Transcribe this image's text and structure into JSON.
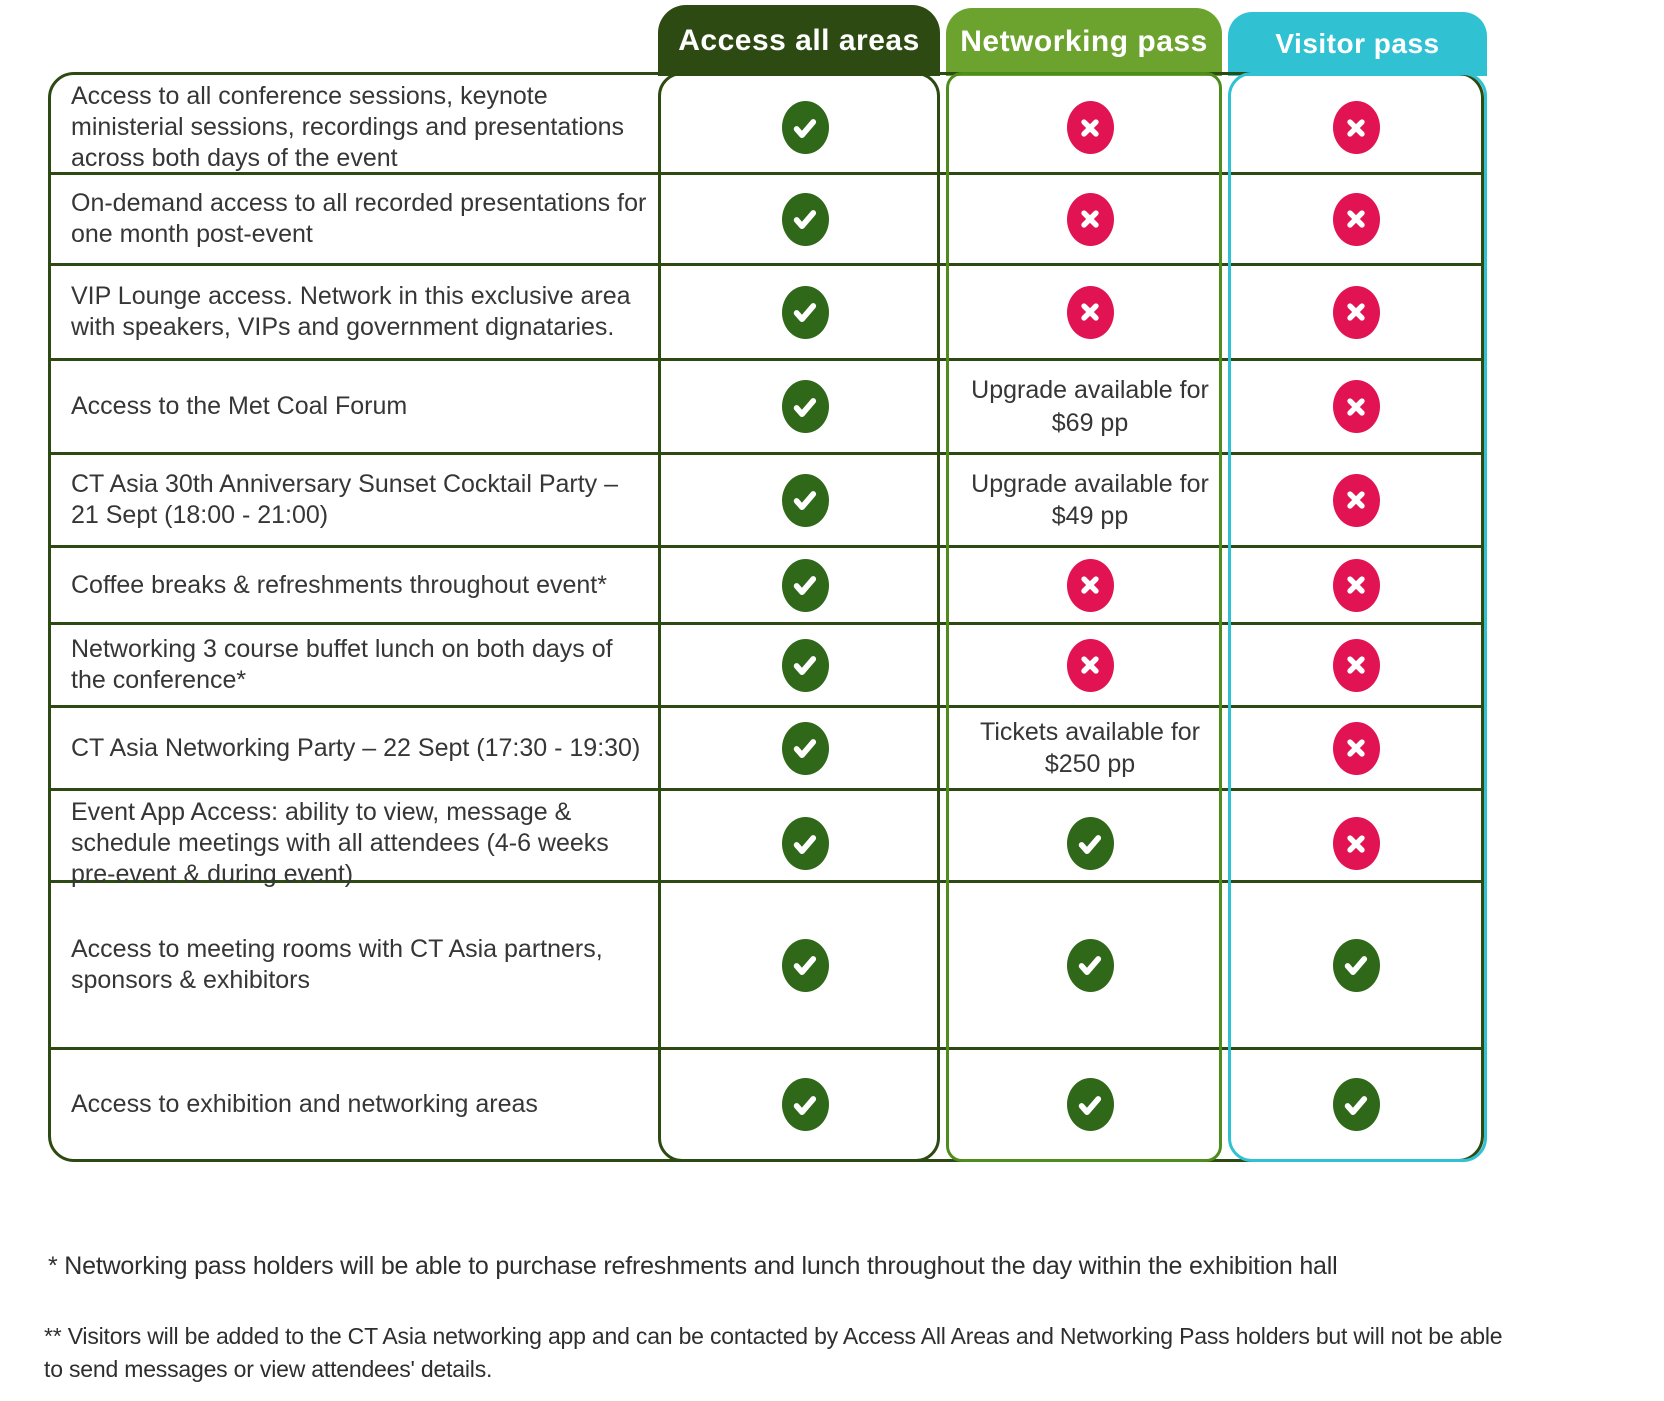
{
  "table": {
    "columns": [
      {
        "id": "access-all-areas",
        "label": "Access all areas",
        "header_bg": "#2d4a12",
        "border_color": "#2d4a12"
      },
      {
        "id": "networking-pass",
        "label": "Networking pass",
        "header_bg": "#6ca32e",
        "border_color": "#4e8c1b"
      },
      {
        "id": "visitor-pass",
        "label": "Visitor pass",
        "header_bg": "#30c2d3",
        "border_color": "#30c2d3"
      }
    ],
    "rows": [
      {
        "feature": "Access to all conference sessions, keynote ministerial sessions, recordings and presentations across both days of the event",
        "cells": [
          "check",
          "cross",
          "cross"
        ]
      },
      {
        "feature": "On-demand access to all recorded presentations for one month post-event",
        "cells": [
          "check",
          "cross",
          "cross"
        ]
      },
      {
        "feature": "VIP Lounge access. Network in this exclusive area with speakers, VIPs and government dignataries.",
        "cells": [
          "check",
          "cross",
          "cross"
        ]
      },
      {
        "feature": "Access to the Met Coal Forum",
        "cells": [
          "check",
          {
            "text": "Upgrade available for $69 pp"
          },
          "cross"
        ]
      },
      {
        "feature": "CT Asia 30th Anniversary Sunset Cocktail Party – 21 Sept (18:00 - 21:00)",
        "cells": [
          "check",
          {
            "text": "Upgrade available for $49 pp"
          },
          "cross"
        ]
      },
      {
        "feature": "Coffee breaks & refreshments throughout event*",
        "cells": [
          "check",
          "cross",
          "cross"
        ]
      },
      {
        "feature": "Networking 3 course buffet lunch on both days of the conference*",
        "cells": [
          "check",
          "cross",
          "cross"
        ]
      },
      {
        "feature": "CT Asia Networking Party – 22 Sept (17:30 - 19:30)",
        "cells": [
          "check",
          {
            "text": "Tickets available for $250 pp"
          },
          "cross"
        ]
      },
      {
        "feature": "Event App Access: ability to view, message & schedule meetings with all attendees (4-6 weeks pre-event & during event)",
        "cells": [
          "check",
          "check",
          "cross"
        ]
      },
      {
        "feature": "Access to meeting rooms with CT Asia partners, sponsors & exhibitors",
        "cells": [
          "check",
          "check",
          "check"
        ]
      },
      {
        "feature": "Access to exhibition and networking areas",
        "cells": [
          "check",
          "check",
          "check"
        ]
      }
    ]
  },
  "icons": {
    "check_icon_color": "#30681a",
    "cross_icon_color": "#e21352"
  },
  "footnotes": [
    "* Networking pass holders will be able to purchase refreshments and lunch throughout the day within the exhibition hall",
    "** Visitors will be added to the CT Asia networking app and can be contacted by Access All Areas and Networking Pass holders but will not be able to send messages or view attendees' details."
  ]
}
